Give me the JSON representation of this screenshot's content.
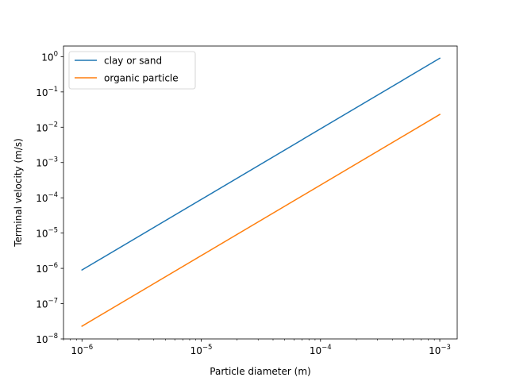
{
  "chart_data": {
    "type": "line",
    "title": "",
    "xlabel": "Particle diameter (m)",
    "ylabel": "Terminal velocity (m/s)",
    "xscale": "log",
    "yscale": "log",
    "xlim": [
      7e-07,
      0.0014
    ],
    "ylim": [
      1e-08,
      2.0
    ],
    "grid": false,
    "legend_position": "upper-left",
    "x_ticks": [
      {
        "value": 1e-06,
        "base": "10",
        "exp": "−6"
      },
      {
        "value": 1e-05,
        "base": "10",
        "exp": "−5"
      },
      {
        "value": 0.0001,
        "base": "10",
        "exp": "−4"
      },
      {
        "value": 0.001,
        "base": "10",
        "exp": "−3"
      }
    ],
    "y_ticks": [
      {
        "value": 1e-08,
        "base": "10",
        "exp": "−8"
      },
      {
        "value": 1e-07,
        "base": "10",
        "exp": "−7"
      },
      {
        "value": 1e-06,
        "base": "10",
        "exp": "−6"
      },
      {
        "value": 1e-05,
        "base": "10",
        "exp": "−5"
      },
      {
        "value": 0.0001,
        "base": "10",
        "exp": "−4"
      },
      {
        "value": 0.001,
        "base": "10",
        "exp": "−3"
      },
      {
        "value": 0.01,
        "base": "10",
        "exp": "−2"
      },
      {
        "value": 0.1,
        "base": "10",
        "exp": "−1"
      },
      {
        "value": 1.0,
        "base": "10",
        "exp": "0"
      }
    ],
    "series": [
      {
        "name": "clay or sand",
        "color": "#1f77b4",
        "x": [
          1e-06,
          0.001
        ],
        "y": [
          9e-07,
          0.9
        ]
      },
      {
        "name": "organic particle",
        "color": "#ff7f0e",
        "x": [
          1e-06,
          0.001
        ],
        "y": [
          2.3e-08,
          0.023
        ]
      }
    ]
  }
}
